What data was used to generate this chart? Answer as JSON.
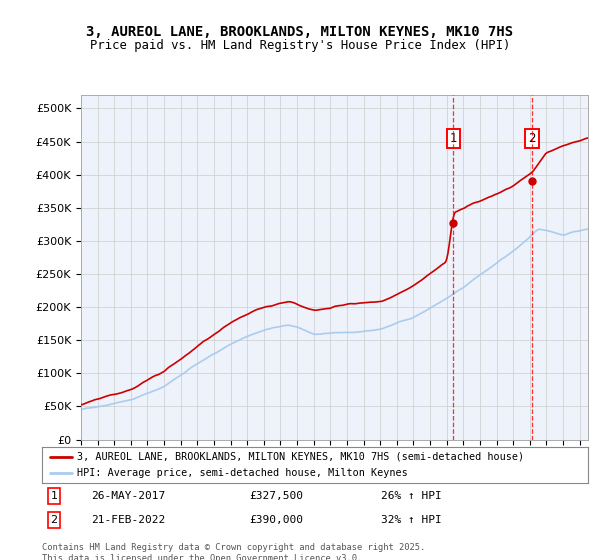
{
  "title_line1": "3, AUREOL LANE, BROOKLANDS, MILTON KEYNES, MK10 7HS",
  "title_line2": "Price paid vs. HM Land Registry's House Price Index (HPI)",
  "ylim": [
    0,
    520000
  ],
  "yticks": [
    0,
    50000,
    100000,
    150000,
    200000,
    250000,
    300000,
    350000,
    400000,
    450000,
    500000
  ],
  "ytick_labels": [
    "£0",
    "£50K",
    "£100K",
    "£150K",
    "£200K",
    "£250K",
    "£300K",
    "£350K",
    "£400K",
    "£450K",
    "£500K"
  ],
  "plot_bg_color": "#eef2fa",
  "grid_color": "#cccccc",
  "red_line_color": "#cc0000",
  "blue_line_color": "#aaccee",
  "sale1_x": 2017.4,
  "sale1_y": 327500,
  "sale2_x": 2022.13,
  "sale2_y": 390000,
  "sale1_date": "26-MAY-2017",
  "sale1_price": "£327,500",
  "sale1_hpi": "26% ↑ HPI",
  "sale2_date": "21-FEB-2022",
  "sale2_price": "£390,000",
  "sale2_hpi": "32% ↑ HPI",
  "legend_line1": "3, AUREOL LANE, BROOKLANDS, MILTON KEYNES, MK10 7HS (semi-detached house)",
  "legend_line2": "HPI: Average price, semi-detached house, Milton Keynes",
  "footnote": "Contains HM Land Registry data © Crown copyright and database right 2025.\nThis data is licensed under the Open Government Licence v3.0.",
  "xmin": 1995,
  "xmax": 2025.5,
  "hpi_anchors_x": [
    1995,
    1998,
    2000,
    2002,
    2004,
    2006,
    2007.5,
    2009,
    2011,
    2013,
    2015,
    2017,
    2019,
    2021,
    2022.5,
    2024,
    2025.5
  ],
  "hpi_anchors_y": [
    45000,
    62000,
    82000,
    115000,
    145000,
    165000,
    172000,
    158000,
    162000,
    168000,
    185000,
    215000,
    250000,
    285000,
    315000,
    305000,
    315000
  ],
  "price_anchors_x": [
    1995,
    1998,
    2000,
    2002,
    2004,
    2006,
    2007.5,
    2009,
    2011,
    2013,
    2015,
    2017,
    2017.4,
    2019,
    2021,
    2022.13,
    2023,
    2024,
    2025.5
  ],
  "price_anchors_y": [
    52000,
    72000,
    97000,
    135000,
    170000,
    195000,
    202000,
    185000,
    192000,
    198000,
    220000,
    255000,
    327500,
    345000,
    370000,
    390000,
    420000,
    430000,
    440000
  ]
}
